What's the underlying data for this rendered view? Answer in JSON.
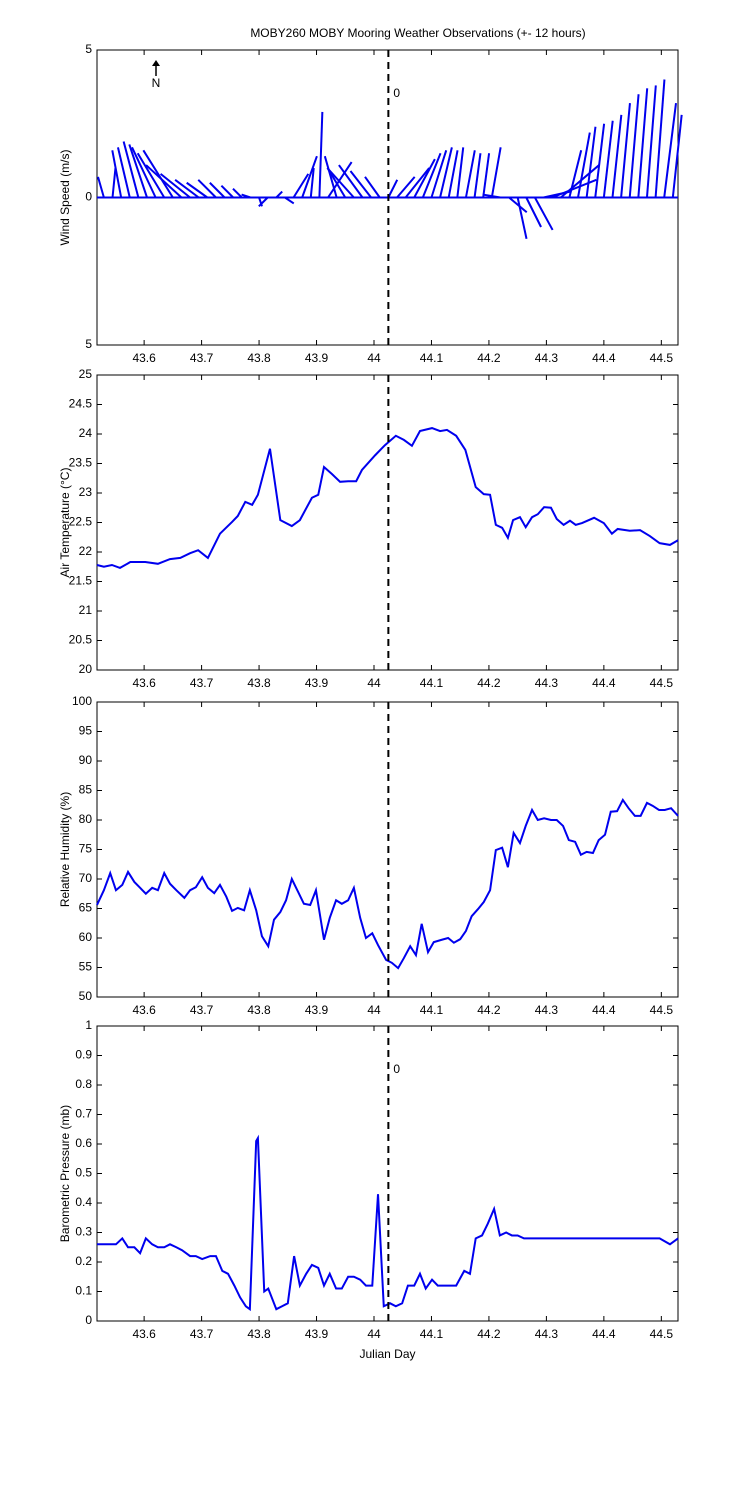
{
  "title": "MOBY260 MOBY Mooring Weather Observations (+- 12 hours)",
  "chart_data": [
    {
      "type": "stick",
      "ylabel": "Wind Speed (m/s)",
      "color": "#0000ee",
      "annotation": "0",
      "annotation_color": "#c00000",
      "north_label": "N",
      "xlim": [
        43.518,
        44.529
      ],
      "xticks": [
        43.6,
        43.7,
        43.8,
        43.9,
        44,
        44.1,
        44.2,
        44.3,
        44.4,
        44.5
      ],
      "vline": 44.025,
      "ylim": [
        -5,
        5
      ],
      "yticks": [
        {
          "value": -5,
          "label": "5"
        },
        0,
        {
          "value": 5,
          "label": "5"
        }
      ],
      "x": [
        43.53,
        43.545,
        43.56,
        43.575,
        43.59,
        43.605,
        43.62,
        43.635,
        43.65,
        43.665,
        43.68,
        43.695,
        43.71,
        43.725,
        43.74,
        43.755,
        43.77,
        43.785,
        43.8,
        43.815,
        43.83,
        43.845,
        43.86,
        43.875,
        43.89,
        43.905,
        43.92,
        43.935,
        43.95,
        43.965,
        43.98,
        43.995,
        44.01,
        44.025,
        44.04,
        44.055,
        44.07,
        44.085,
        44.1,
        44.115,
        44.13,
        44.145,
        44.16,
        44.175,
        44.19,
        44.205,
        44.22,
        44.235,
        44.25,
        44.265,
        44.28,
        44.295,
        44.31,
        44.325,
        44.34,
        44.355,
        44.37,
        44.385,
        44.4,
        44.415,
        44.43,
        44.445,
        44.46,
        44.475,
        44.49,
        44.505,
        44.52
      ],
      "u": [
        -0.2,
        0.1,
        -0.3,
        -0.4,
        -0.5,
        -0.6,
        -0.8,
        -0.9,
        -1.0,
        -1.2,
        -1.0,
        -0.8,
        -0.7,
        -0.6,
        -0.5,
        -0.4,
        -0.3,
        -0.3,
        0.1,
        -0.3,
        0.2,
        0.3,
        0.5,
        0.5,
        0.1,
        0.1,
        0.8,
        -0.4,
        -0.6,
        -0.9,
        -0.8,
        -0.7,
        -0.5,
        0.3,
        0.6,
        0.8,
        0.7,
        0.6,
        0.5,
        0.4,
        0.3,
        0.2,
        0.3,
        0.2,
        0.2,
        0.3,
        -0.6,
        0.6,
        0.3,
        0.5,
        0.6,
        0.9,
        1.5,
        1.3,
        0.4,
        0.4,
        0.3,
        0.3,
        0.3,
        0.3,
        0.3,
        0.3,
        0.3,
        0.3,
        0.3,
        0.4,
        0.3
      ],
      "v": [
        0.7,
        1.0,
        1.6,
        1.7,
        1.9,
        1.8,
        1.7,
        1.5,
        1.6,
        1.1,
        0.8,
        0.6,
        0.5,
        0.6,
        0.5,
        0.4,
        0.3,
        0.1,
        -0.3,
        -0.3,
        0.2,
        -0.2,
        0.8,
        1.4,
        1.0,
        2.9,
        1.2,
        1.4,
        1.0,
        1.0,
        1.1,
        0.9,
        0.7,
        0.6,
        0.7,
        1.0,
        1.3,
        1.5,
        1.6,
        1.7,
        1.6,
        1.7,
        1.6,
        1.5,
        1.5,
        1.7,
        0.1,
        -0.5,
        -1.4,
        -1.0,
        -1.1,
        0.2,
        0.6,
        1.1,
        1.6,
        2.2,
        2.4,
        2.5,
        2.6,
        2.8,
        3.2,
        3.5,
        3.7,
        3.8,
        4.0,
        3.2,
        2.8
      ]
    },
    {
      "type": "line",
      "ylabel": "Air Temperature (°C)",
      "color": "#0000ee",
      "xlim": [
        43.518,
        44.529
      ],
      "xticks": [
        43.6,
        43.7,
        43.8,
        43.9,
        44,
        44.1,
        44.2,
        44.3,
        44.4,
        44.5
      ],
      "vline": 44.025,
      "ylim": [
        20,
        25
      ],
      "yticks": [
        20,
        20.5,
        21,
        21.5,
        22,
        22.5,
        23,
        23.5,
        24,
        24.5,
        25
      ],
      "x": [
        43.518,
        43.53,
        43.544,
        43.558,
        43.576,
        43.602,
        43.624,
        43.645,
        43.663,
        43.68,
        43.694,
        43.711,
        43.732,
        43.753,
        43.763,
        43.776,
        43.788,
        43.798,
        43.819,
        43.837,
        43.857,
        43.871,
        43.892,
        43.903,
        43.913,
        43.927,
        43.941,
        43.955,
        43.969,
        43.979,
        44.002,
        44.019,
        44.038,
        44.052,
        44.066,
        44.08,
        44.101,
        44.115,
        44.127,
        44.143,
        44.159,
        44.177,
        44.191,
        44.202,
        44.212,
        44.223,
        44.233,
        44.242,
        44.254,
        44.264,
        44.275,
        44.285,
        44.296,
        44.308,
        44.318,
        44.33,
        44.341,
        44.351,
        44.362,
        44.383,
        44.4,
        44.414,
        44.424,
        44.445,
        44.463,
        44.48,
        44.497,
        44.515,
        44.529
      ],
      "values": [
        21.78,
        21.75,
        21.78,
        21.73,
        21.83,
        21.83,
        21.8,
        21.88,
        21.9,
        21.98,
        22.03,
        21.9,
        22.31,
        22.51,
        22.61,
        22.85,
        22.8,
        22.97,
        23.75,
        22.54,
        22.44,
        22.54,
        22.92,
        22.97,
        23.44,
        23.32,
        23.19,
        23.2,
        23.2,
        23.39,
        23.64,
        23.81,
        23.97,
        23.9,
        23.8,
        24.05,
        24.1,
        24.05,
        24.07,
        23.97,
        23.73,
        23.1,
        22.98,
        22.97,
        22.46,
        22.41,
        22.24,
        22.54,
        22.59,
        22.42,
        22.59,
        22.64,
        22.76,
        22.75,
        22.56,
        22.46,
        22.53,
        22.46,
        22.49,
        22.58,
        22.49,
        22.31,
        22.39,
        22.36,
        22.37,
        22.27,
        22.15,
        22.12,
        22.2
      ]
    },
    {
      "type": "line",
      "ylabel": "Relative Humidity (%)",
      "color": "#0000ee",
      "xlim": [
        43.518,
        44.529
      ],
      "xticks": [
        43.6,
        43.7,
        43.8,
        43.9,
        44,
        44.1,
        44.2,
        44.3,
        44.4,
        44.5
      ],
      "vline": 44.025,
      "ylim": [
        50,
        100
      ],
      "yticks": [
        50,
        55,
        60,
        65,
        70,
        75,
        80,
        85,
        90,
        95,
        100
      ],
      "x": [
        43.518,
        43.53,
        43.541,
        43.551,
        43.562,
        43.572,
        43.583,
        43.593,
        43.603,
        43.614,
        43.624,
        43.635,
        43.645,
        43.656,
        43.67,
        43.68,
        43.69,
        43.701,
        43.711,
        43.722,
        43.732,
        43.743,
        43.753,
        43.763,
        43.774,
        43.784,
        43.795,
        43.805,
        43.816,
        43.826,
        43.837,
        43.847,
        43.857,
        43.868,
        43.878,
        43.889,
        43.899,
        43.913,
        43.923,
        43.934,
        43.944,
        43.955,
        43.965,
        43.976,
        43.986,
        43.997,
        44.007,
        44.021,
        44.031,
        44.042,
        44.052,
        44.063,
        44.073,
        44.083,
        44.094,
        44.104,
        44.118,
        44.129,
        44.139,
        44.15,
        44.16,
        44.17,
        44.181,
        44.191,
        44.202,
        44.212,
        44.223,
        44.233,
        44.243,
        44.254,
        44.264,
        44.275,
        44.285,
        44.296,
        44.308,
        44.318,
        44.329,
        44.339,
        44.35,
        44.36,
        44.37,
        44.381,
        44.391,
        44.402,
        44.412,
        44.423,
        44.433,
        44.443,
        44.454,
        44.464,
        44.475,
        44.485,
        44.496,
        44.506,
        44.517,
        44.529
      ],
      "values": [
        65.6,
        68.1,
        71.0,
        68.1,
        69.0,
        71.2,
        69.5,
        68.5,
        67.5,
        68.5,
        68.1,
        71.0,
        69.2,
        68.1,
        66.8,
        68.1,
        68.6,
        70.3,
        68.5,
        67.6,
        69.0,
        67.0,
        64.6,
        65.1,
        64.7,
        68.1,
        64.7,
        60.3,
        58.6,
        63.1,
        64.4,
        66.4,
        70.0,
        67.8,
        65.8,
        65.6,
        68.1,
        59.7,
        63.4,
        66.4,
        65.8,
        66.4,
        68.5,
        63.4,
        60.0,
        60.8,
        58.8,
        56.3,
        55.8,
        54.9,
        56.6,
        58.6,
        57.1,
        62.4,
        57.6,
        59.3,
        59.7,
        60.0,
        59.2,
        59.8,
        61.2,
        63.7,
        64.9,
        66.1,
        68.1,
        74.9,
        75.3,
        72.0,
        77.8,
        76.1,
        79.0,
        81.7,
        80.0,
        80.3,
        80.0,
        80.0,
        79.0,
        76.6,
        76.3,
        74.1,
        74.6,
        74.4,
        76.6,
        77.5,
        81.4,
        81.5,
        83.4,
        82.0,
        80.7,
        80.7,
        82.9,
        82.4,
        81.7,
        81.7,
        82.0,
        80.7
      ]
    },
    {
      "type": "line",
      "ylabel": "Barometric Pressure (mb)",
      "xlabel": "Julian Day",
      "color": "#0000ee",
      "annotation": "0",
      "annotation_color": "#c00000",
      "xlim": [
        43.518,
        44.529
      ],
      "xticks": [
        43.6,
        43.7,
        43.8,
        43.9,
        44,
        44.1,
        44.2,
        44.3,
        44.4,
        44.5
      ],
      "vline": 44.025,
      "ylim": [
        0,
        1
      ],
      "yticks": [
        0,
        0.1,
        0.2,
        0.3,
        0.4,
        0.5,
        0.6,
        0.7,
        0.8,
        0.9,
        1
      ],
      "x": [
        43.518,
        43.53,
        43.541,
        43.551,
        43.562,
        43.572,
        43.583,
        43.593,
        43.603,
        43.614,
        43.624,
        43.635,
        43.645,
        43.656,
        43.666,
        43.68,
        43.69,
        43.701,
        43.715,
        43.725,
        43.736,
        43.746,
        43.757,
        43.767,
        43.777,
        43.784,
        43.795,
        43.798,
        43.809,
        43.816,
        43.83,
        43.84,
        43.85,
        43.861,
        43.871,
        43.882,
        43.892,
        43.903,
        43.913,
        43.923,
        43.934,
        43.944,
        43.955,
        43.965,
        43.976,
        43.986,
        43.997,
        44.007,
        44.017,
        44.028,
        44.038,
        44.049,
        44.059,
        44.07,
        44.08,
        44.09,
        44.101,
        44.111,
        44.122,
        44.143,
        44.157,
        44.167,
        44.177,
        44.188,
        44.198,
        44.209,
        44.219,
        44.23,
        44.24,
        44.25,
        44.261,
        44.289,
        44.358,
        44.428,
        44.497,
        44.515,
        44.529
      ],
      "values": [
        0.26,
        0.26,
        0.26,
        0.26,
        0.28,
        0.25,
        0.25,
        0.23,
        0.28,
        0.26,
        0.25,
        0.25,
        0.26,
        0.25,
        0.24,
        0.22,
        0.22,
        0.21,
        0.22,
        0.22,
        0.17,
        0.16,
        0.12,
        0.08,
        0.05,
        0.04,
        0.61,
        0.62,
        0.1,
        0.11,
        0.04,
        0.05,
        0.06,
        0.22,
        0.12,
        0.16,
        0.19,
        0.18,
        0.12,
        0.16,
        0.11,
        0.11,
        0.15,
        0.15,
        0.14,
        0.12,
        0.12,
        0.43,
        0.05,
        0.06,
        0.05,
        0.06,
        0.12,
        0.12,
        0.16,
        0.11,
        0.14,
        0.12,
        0.12,
        0.12,
        0.17,
        0.16,
        0.28,
        0.29,
        0.33,
        0.38,
        0.29,
        0.3,
        0.29,
        0.29,
        0.28,
        0.28,
        0.28,
        0.28,
        0.28,
        0.26,
        0.28
      ]
    }
  ]
}
